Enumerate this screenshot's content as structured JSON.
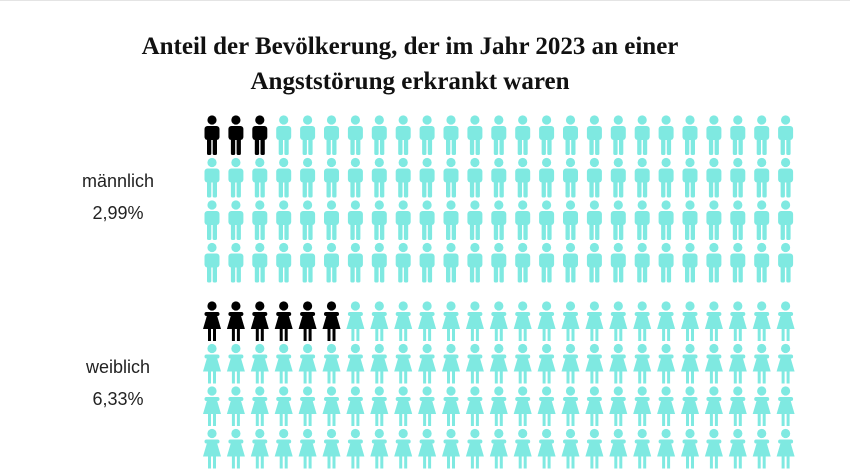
{
  "chart_data": {
    "type": "pictogram",
    "title": "Anteil der Bevölkerung, der im Jahr 2023 an einer Angststörung erkrankt waren",
    "categories": [
      "männlich",
      "weiblich"
    ],
    "values": [
      2.99,
      6.33
    ],
    "value_labels": [
      "2,99%",
      "6,33%"
    ],
    "xlim": [
      0,
      100
    ],
    "color": "#000000",
    "rest_color": "#7fe9e1"
  }
}
